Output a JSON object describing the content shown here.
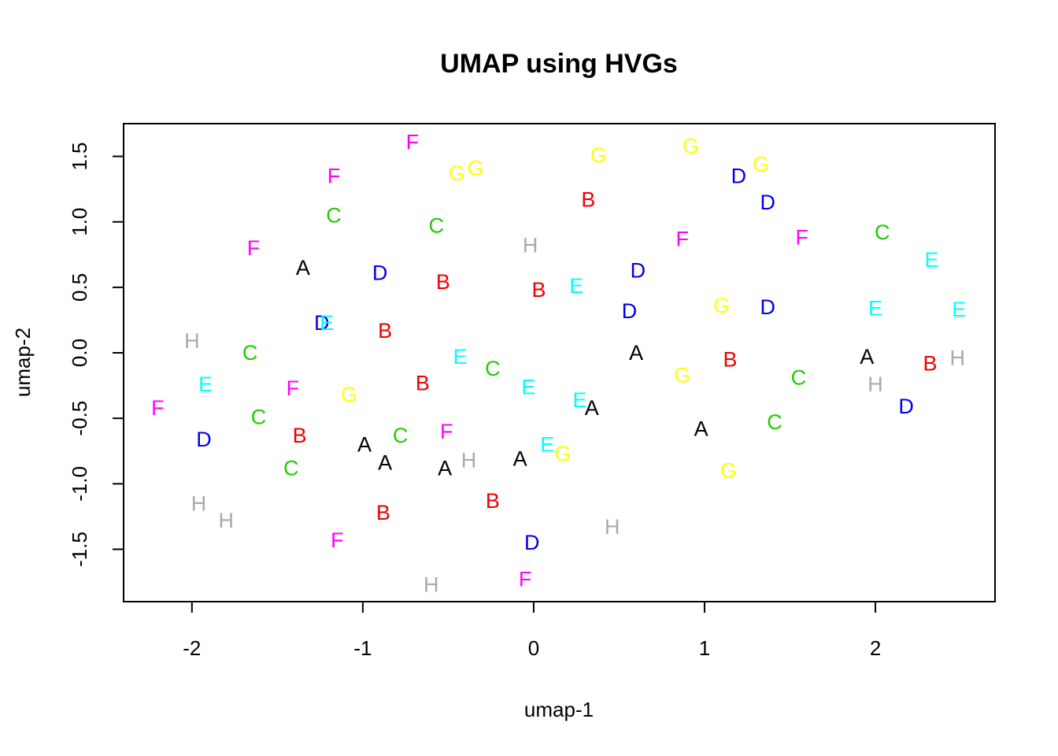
{
  "chart_data": {
    "type": "scatter",
    "title": "UMAP using HVGs",
    "xlabel": "umap-1",
    "ylabel": "umap-2",
    "xlim": [
      -2.4,
      2.7
    ],
    "ylim": [
      -1.9,
      1.75
    ],
    "xticks": [
      -2,
      -1,
      0,
      1,
      2
    ],
    "xtick_labels": [
      "-2",
      "-1",
      "0",
      "1",
      "2"
    ],
    "yticks": [
      -1.5,
      -1.0,
      -0.5,
      0.0,
      0.5,
      1.0,
      1.5
    ],
    "ytick_labels": [
      "-1.5",
      "-1.0",
      "-0.5",
      "0.0",
      "0.5",
      "1.0",
      "1.5"
    ],
    "grid": false,
    "colors": {
      "A": "#000000",
      "B": "#ee0000",
      "C": "#22cc00",
      "D": "#0000ee",
      "E": "#00ffff",
      "F": "#ff00ff",
      "G": "#ffff00",
      "H": "#aaaaaa"
    },
    "points": [
      {
        "label": "A",
        "x": -1.35,
        "y": 0.65
      },
      {
        "label": "A",
        "x": 0.6,
        "y": 0.0
      },
      {
        "label": "A",
        "x": 1.95,
        "y": -0.03
      },
      {
        "label": "A",
        "x": 0.34,
        "y": -0.42
      },
      {
        "label": "A",
        "x": 0.98,
        "y": -0.58
      },
      {
        "label": "A",
        "x": -0.99,
        "y": -0.7
      },
      {
        "label": "A",
        "x": -0.87,
        "y": -0.84
      },
      {
        "label": "A",
        "x": -0.52,
        "y": -0.88
      },
      {
        "label": "A",
        "x": -0.08,
        "y": -0.81
      },
      {
        "label": "B",
        "x": 0.32,
        "y": 1.17
      },
      {
        "label": "B",
        "x": -0.53,
        "y": 0.54
      },
      {
        "label": "B",
        "x": 0.03,
        "y": 0.48
      },
      {
        "label": "B",
        "x": -0.87,
        "y": 0.17
      },
      {
        "label": "B",
        "x": 1.15,
        "y": -0.05
      },
      {
        "label": "B",
        "x": 2.32,
        "y": -0.08
      },
      {
        "label": "B",
        "x": -0.65,
        "y": -0.23
      },
      {
        "label": "B",
        "x": -1.37,
        "y": -0.63
      },
      {
        "label": "B",
        "x": -0.24,
        "y": -1.13
      },
      {
        "label": "B",
        "x": -0.88,
        "y": -1.22
      },
      {
        "label": "C",
        "x": -1.17,
        "y": 1.05
      },
      {
        "label": "C",
        "x": -0.57,
        "y": 0.97
      },
      {
        "label": "C",
        "x": 2.04,
        "y": 0.92
      },
      {
        "label": "C",
        "x": -1.66,
        "y": 0.0
      },
      {
        "label": "C",
        "x": -0.24,
        "y": -0.12
      },
      {
        "label": "C",
        "x": 1.55,
        "y": -0.19
      },
      {
        "label": "C",
        "x": -1.61,
        "y": -0.49
      },
      {
        "label": "C",
        "x": 1.41,
        "y": -0.53
      },
      {
        "label": "C",
        "x": -0.78,
        "y": -0.63
      },
      {
        "label": "C",
        "x": -1.42,
        "y": -0.88
      },
      {
        "label": "D",
        "x": 1.2,
        "y": 1.35
      },
      {
        "label": "D",
        "x": 1.37,
        "y": 1.15
      },
      {
        "label": "D",
        "x": -0.9,
        "y": 0.61
      },
      {
        "label": "D",
        "x": 0.61,
        "y": 0.63
      },
      {
        "label": "D",
        "x": 0.56,
        "y": 0.32
      },
      {
        "label": "D",
        "x": 1.37,
        "y": 0.35
      },
      {
        "label": "D",
        "x": -1.24,
        "y": 0.23
      },
      {
        "label": "D",
        "x": 2.18,
        "y": -0.41
      },
      {
        "label": "D",
        "x": -1.93,
        "y": -0.66
      },
      {
        "label": "D",
        "x": -0.01,
        "y": -1.45
      },
      {
        "label": "E",
        "x": 2.33,
        "y": 0.71
      },
      {
        "label": "E",
        "x": 0.25,
        "y": 0.51
      },
      {
        "label": "E",
        "x": 2.0,
        "y": 0.34
      },
      {
        "label": "E",
        "x": 2.49,
        "y": 0.33
      },
      {
        "label": "E",
        "x": -1.21,
        "y": 0.23
      },
      {
        "label": "E",
        "x": -0.43,
        "y": -0.03
      },
      {
        "label": "E",
        "x": -1.92,
        "y": -0.24
      },
      {
        "label": "E",
        "x": -0.03,
        "y": -0.26
      },
      {
        "label": "E",
        "x": 0.27,
        "y": -0.36
      },
      {
        "label": "E",
        "x": 0.08,
        "y": -0.7
      },
      {
        "label": "F",
        "x": -0.71,
        "y": 1.61
      },
      {
        "label": "F",
        "x": -1.17,
        "y": 1.35
      },
      {
        "label": "F",
        "x": 0.87,
        "y": 0.87
      },
      {
        "label": "F",
        "x": 1.57,
        "y": 0.88
      },
      {
        "label": "F",
        "x": -1.64,
        "y": 0.8
      },
      {
        "label": "F",
        "x": -1.41,
        "y": -0.27
      },
      {
        "label": "F",
        "x": -2.2,
        "y": -0.42
      },
      {
        "label": "F",
        "x": -0.51,
        "y": -0.6
      },
      {
        "label": "F",
        "x": -1.15,
        "y": -1.43
      },
      {
        "label": "F",
        "x": -0.05,
        "y": -1.73
      },
      {
        "label": "G",
        "x": 0.92,
        "y": 1.58
      },
      {
        "label": "G",
        "x": 0.38,
        "y": 1.51
      },
      {
        "label": "G",
        "x": 1.33,
        "y": 1.44
      },
      {
        "label": "G",
        "x": -0.45,
        "y": 1.37
      },
      {
        "label": "G",
        "x": -0.34,
        "y": 1.41
      },
      {
        "label": "G",
        "x": 1.1,
        "y": 0.36
      },
      {
        "label": "G",
        "x": 0.87,
        "y": -0.17
      },
      {
        "label": "G",
        "x": -1.08,
        "y": -0.32
      },
      {
        "label": "G",
        "x": 0.17,
        "y": -0.77
      },
      {
        "label": "G",
        "x": 1.14,
        "y": -0.9
      },
      {
        "label": "H",
        "x": -0.02,
        "y": 0.82
      },
      {
        "label": "H",
        "x": -2.0,
        "y": 0.09
      },
      {
        "label": "H",
        "x": 2.48,
        "y": -0.04
      },
      {
        "label": "H",
        "x": 2.0,
        "y": -0.24
      },
      {
        "label": "H",
        "x": -0.38,
        "y": -0.82
      },
      {
        "label": "H",
        "x": -1.96,
        "y": -1.15
      },
      {
        "label": "H",
        "x": -1.8,
        "y": -1.28
      },
      {
        "label": "H",
        "x": 0.46,
        "y": -1.33
      },
      {
        "label": "H",
        "x": -0.6,
        "y": -1.77
      }
    ]
  }
}
